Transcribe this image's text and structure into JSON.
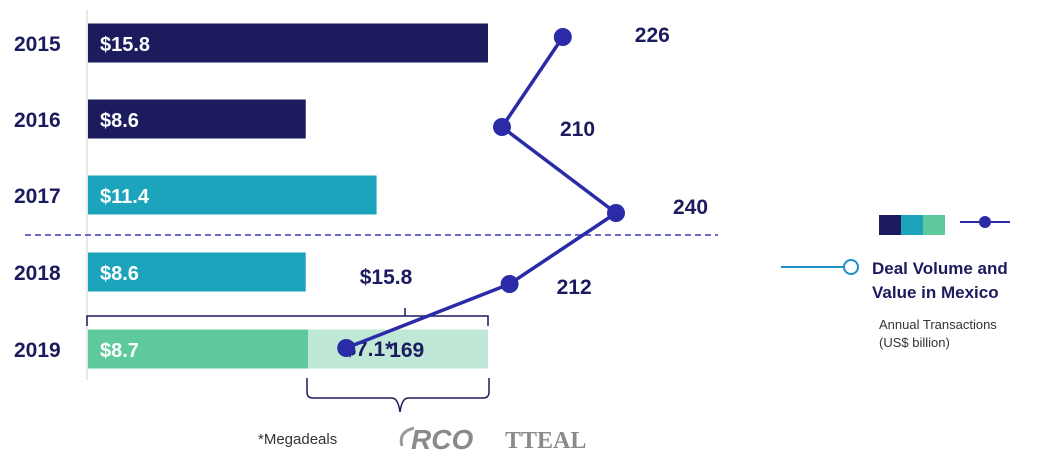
{
  "chart_data": {
    "type": "bar",
    "orientation": "horizontal",
    "categories": [
      "2015",
      "2016",
      "2017",
      "2018",
      "2019"
    ],
    "series": [
      {
        "values": [
          15.8,
          8.6,
          11.4,
          8.6,
          8.7
        ],
        "labels": [
          "$15.8",
          "$8.6",
          "$11.4",
          "$8.6",
          "$8.7"
        ],
        "colors": [
          "#1b1b5e",
          "#1b1b5e",
          "#1ca4bc",
          "#1ca4bc",
          "#5ec99a"
        ]
      },
      {
        "values": [
          0,
          0,
          0,
          0,
          7.1
        ],
        "labels": [
          "",
          "",
          "",
          "",
          "$7.1*"
        ],
        "colors": [
          "#bfe9d6",
          "#bfe9d6",
          "#bfe9d6",
          "#bfe9d6",
          "#bfe9d6"
        ]
      },
      {
        "type": "line",
        "values": [
          226,
          210,
          240,
          212,
          169
        ],
        "labels": [
          "226",
          "210",
          "240",
          "212",
          "169"
        ],
        "color": "#2b2ba8"
      }
    ],
    "bracket_total_label": "$15.8",
    "legend": {
      "placement": "right",
      "title_line1": "Deal Volume and",
      "title_line2": "Value in Mexico",
      "subtitle_line1": "Annual Transactions",
      "subtitle_line2": "(US$ billion)",
      "swatch_colors": [
        "#1b1b5e",
        "#1ca4bc",
        "#5ec99a"
      ],
      "line_color": "#2b2ba8",
      "bullet_line_color": "#1f8fc9"
    },
    "footnote": "*Megadeals",
    "logos": [
      "RCO",
      "TTEAL"
    ]
  }
}
